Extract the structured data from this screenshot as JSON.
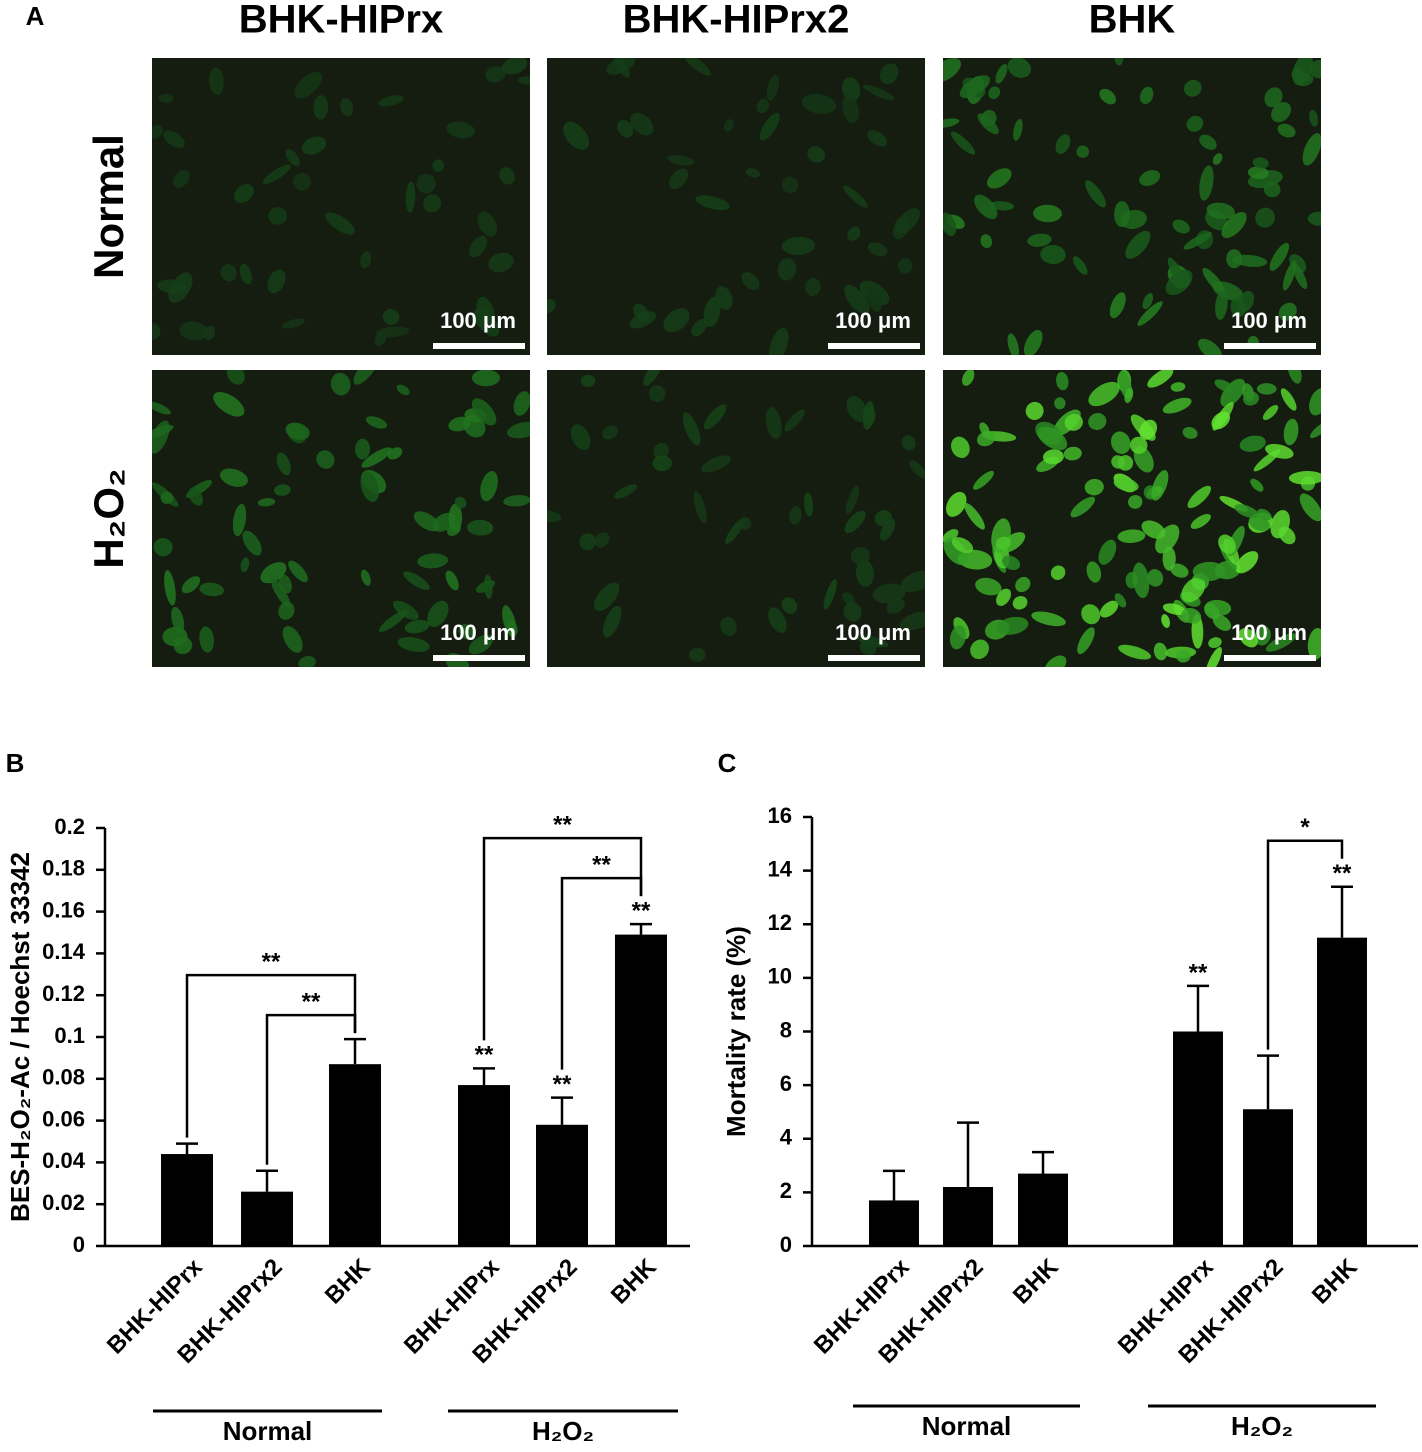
{
  "panel_a": {
    "label": "A",
    "columns": [
      "BHK-HIPrx",
      "BHK-HIPrx2",
      "BHK"
    ],
    "rows": [
      "Normal",
      "H₂O₂"
    ],
    "scale_bars": [
      [
        "100 μm",
        "100 μm",
        "100 μm"
      ],
      [
        "100 μm",
        "100 μm",
        "100 μm"
      ]
    ]
  },
  "chart_data": [
    {
      "type": "bar",
      "panel_label": "B",
      "ylabel": "BES-H₂O₂-Ac / Hoechst 33342",
      "categories": [
        "BHK-HIPrx",
        "BHK-HIPrx2",
        "BHK",
        "BHK-HIPrx",
        "BHK-HIPrx2",
        "BHK"
      ],
      "groups": [
        "Normal",
        "H₂O₂"
      ],
      "values": [
        0.044,
        0.026,
        0.087,
        0.077,
        0.058,
        0.149
      ],
      "errors": [
        0.005,
        0.01,
        0.012,
        0.008,
        0.013,
        0.005
      ],
      "color": "#000000",
      "ylim": [
        0,
        0.2
      ],
      "yticks": [
        0,
        0.02,
        0.04,
        0.06,
        0.08,
        0.1,
        0.12,
        0.14,
        0.16,
        0.18,
        0.2
      ],
      "bar_annotations": [
        {
          "bar": 3,
          "label": "**"
        },
        {
          "bar": 4,
          "label": "**"
        },
        {
          "bar": 5,
          "label": "**"
        }
      ],
      "brackets": [
        {
          "from": 1,
          "to": 2,
          "label": "**"
        },
        {
          "from": 0,
          "to": 2,
          "label": "**"
        },
        {
          "from": 4,
          "to": 5,
          "label": "**"
        },
        {
          "from": 3,
          "to": 5,
          "label": "**"
        }
      ]
    },
    {
      "type": "bar",
      "panel_label": "C",
      "ylabel": "Mortality rate (%)",
      "categories": [
        "BHK-HIPrx",
        "BHK-HIPrx2",
        "BHK",
        "BHK-HIPrx",
        "BHK-HIPrx2",
        "BHK"
      ],
      "groups": [
        "Normal",
        "H₂O₂"
      ],
      "values": [
        1.7,
        2.2,
        2.7,
        8.0,
        5.1,
        11.5
      ],
      "errors": [
        1.1,
        2.4,
        0.8,
        1.7,
        2.0,
        1.9
      ],
      "color": "#000000",
      "ylim": [
        0,
        16
      ],
      "yticks": [
        0,
        2,
        4,
        6,
        8,
        10,
        12,
        14,
        16
      ],
      "bar_annotations": [
        {
          "bar": 3,
          "label": "**"
        },
        {
          "bar": 5,
          "label": "**"
        }
      ],
      "brackets": [
        {
          "from": 4,
          "to": 5,
          "label": "*"
        }
      ]
    }
  ]
}
